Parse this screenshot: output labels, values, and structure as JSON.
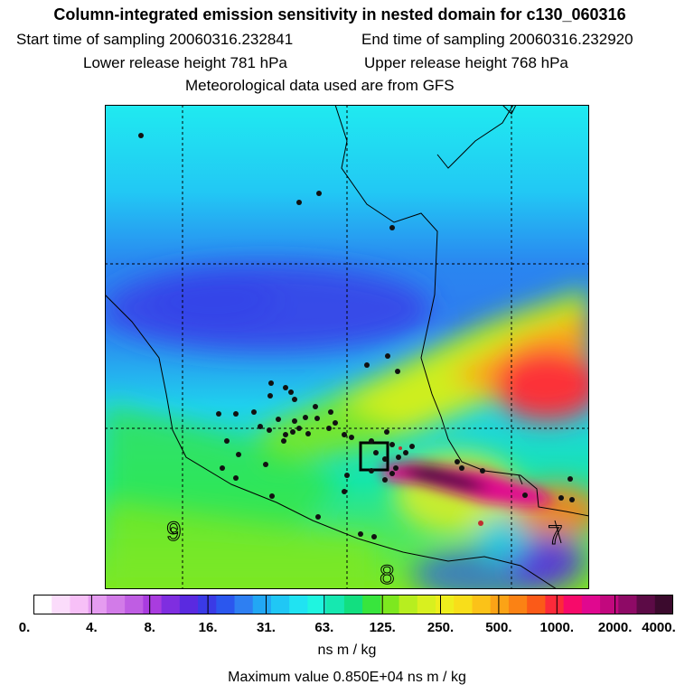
{
  "header": {
    "title": "Column-integrated emission sensitivity in nested domain for c130_060316",
    "start_label": "Start time of sampling 20060316.232841",
    "end_label": "End time of sampling 20060316.232920",
    "lower_label": "Lower release height  781 hPa",
    "upper_label": "Upper release height  768 hPa",
    "met_label": "Meteorological data used are from GFS"
  },
  "map": {
    "contour_labels": [
      "9",
      "8",
      "7"
    ]
  },
  "colorbar": {
    "colors": [
      "#ffffff",
      "#fbdcfb",
      "#f7c0f7",
      "#e59cf0",
      "#d27be8",
      "#bf5de3",
      "#a93cdf",
      "#7f2ee0",
      "#5a2ae0",
      "#3a3ae6",
      "#2b57ee",
      "#2e7ff2",
      "#22a7f4",
      "#20c7f5",
      "#20e3f2",
      "#1ff5e0",
      "#16e8b0",
      "#12df80",
      "#38e53d",
      "#7de81f",
      "#b7ee1f",
      "#d8f01f",
      "#eeee1d",
      "#f8de1a",
      "#fbc218",
      "#fba316",
      "#fb8214",
      "#fb5a18",
      "#fc2a3a",
      "#f70a6a",
      "#e0088f",
      "#c2087e",
      "#8e0a66",
      "#5c0b46",
      "#3b0a2d"
    ],
    "tick_labels": [
      "0.",
      "4.",
      "8.",
      "16.",
      "31.",
      "63.",
      "125.",
      "250.",
      "500.",
      "1000.",
      "2000.",
      "4000."
    ],
    "units": "ns m / kg"
  },
  "footer": {
    "max_value": "Maximum value  0.850E+04 ns m / kg"
  }
}
